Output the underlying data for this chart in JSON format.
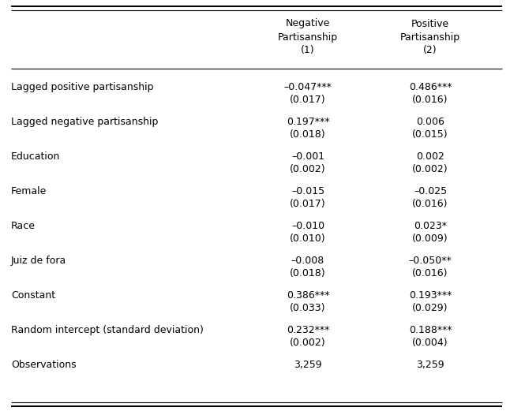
{
  "col_headers": [
    "Negative\nPartisanship\n(1)",
    "Positive\nPartisanship\n(2)"
  ],
  "rows": [
    {
      "label": "Lagged positive partisanship",
      "col1": "–0.047***",
      "col1_se": "(0.017)",
      "col2": "0.486***",
      "col2_se": "(0.016)"
    },
    {
      "label": "Lagged negative partisanship",
      "col1": "0.197***",
      "col1_se": "(0.018)",
      "col2": "0.006",
      "col2_se": "(0.015)"
    },
    {
      "label": "Education",
      "col1": "–0.001",
      "col1_se": "(0.002)",
      "col2": "0.002",
      "col2_se": "(0.002)"
    },
    {
      "label": "Female",
      "col1": "–0.015",
      "col1_se": "(0.017)",
      "col2": "–0.025",
      "col2_se": "(0.016)"
    },
    {
      "label": "Race",
      "col1": "–0.010",
      "col1_se": "(0.010)",
      "col2": "0.023*",
      "col2_se": "(0.009)"
    },
    {
      "label": "Juiz de fora",
      "col1": "–0.008",
      "col1_se": "(0.018)",
      "col2": "–0.050**",
      "col2_se": "(0.016)"
    },
    {
      "label": "Constant",
      "col1": "0.386***",
      "col1_se": "(0.033)",
      "col2": "0.193***",
      "col2_se": "(0.029)"
    },
    {
      "label": "Random intercept (standard deviation)",
      "col1": "0.232***",
      "col1_se": "(0.002)",
      "col2": "0.188***",
      "col2_se": "(0.004)"
    },
    {
      "label": "Observations",
      "col1": "3,259",
      "col1_se": "",
      "col2": "3,259",
      "col2_se": ""
    }
  ],
  "bg_color": "#ffffff",
  "text_color": "#000000",
  "font_size": 9.0,
  "header_font_size": 9.0
}
